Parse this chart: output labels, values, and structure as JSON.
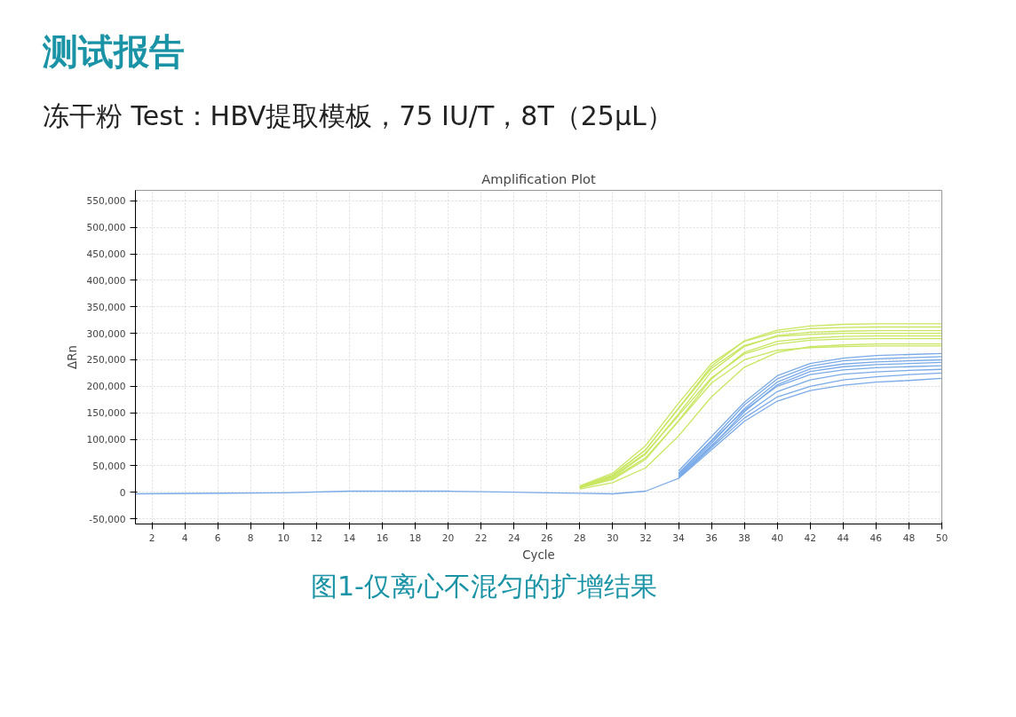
{
  "chart_data": {
    "type": "line",
    "title": "测试报告",
    "subtitle": "冻干粉 Test：HBV提取模板，75 IU/T，8T（25μL）",
    "annotations": [
      "Amplification Plot",
      "图1-仅离心不混匀的扩增结果"
    ],
    "xlabel": "Cycle",
    "ylabel": "ΔRn",
    "x": [
      28,
      30,
      32,
      34,
      36,
      38,
      40,
      42,
      44,
      46,
      48,
      50
    ],
    "xlim": [
      1,
      50
    ],
    "xticks": [
      2,
      4,
      6,
      8,
      10,
      12,
      14,
      16,
      18,
      20,
      22,
      24,
      26,
      28,
      30,
      32,
      34,
      36,
      38,
      40,
      42,
      44,
      46,
      48,
      50
    ],
    "ylim": [
      -60000,
      570000
    ],
    "yticks": [
      {
        "value": -50000,
        "label": "-50,000"
      },
      {
        "value": 0,
        "label": "0"
      },
      {
        "value": 50000,
        "label": "50,000"
      },
      {
        "value": 100000,
        "label": "100,000"
      },
      {
        "value": 150000,
        "label": "150,000"
      },
      {
        "value": 200000,
        "label": "200,000"
      },
      {
        "value": 250000,
        "label": "250,000"
      },
      {
        "value": 300000,
        "label": "300,000"
      },
      {
        "value": 350000,
        "label": "350,000"
      },
      {
        "value": 400000,
        "label": "400,000"
      },
      {
        "value": 450000,
        "label": "450,000"
      },
      {
        "value": 500000,
        "label": "500,000"
      },
      {
        "value": 550000,
        "label": "550,000"
      }
    ],
    "grid": true,
    "marker": "none",
    "line_style": "solid",
    "series": [
      {
        "color": "#c8e660",
        "values": [
          10000,
          32000,
          80000,
          159000,
          238000,
          286000,
          306000,
          314000,
          317000,
          318000,
          318000,
          318000
        ]
      },
      {
        "color": "#c8e660",
        "values": [
          12000,
          36000,
          88000,
          168000,
          243000,
          285000,
          302000,
          309000,
          311000,
          312000,
          312000,
          312000
        ]
      },
      {
        "color": "#c8e660",
        "values": [
          9000,
          28000,
          72000,
          148000,
          228000,
          275000,
          296000,
          302000,
          304000,
          305000,
          305000,
          305000
        ]
      },
      {
        "color": "#c8e660",
        "values": [
          11000,
          33000,
          80000,
          158000,
          234000,
          277000,
          294000,
          298000,
          300000,
          300000,
          300000,
          300000
        ]
      },
      {
        "color": "#c8e660",
        "values": [
          8000,
          24000,
          62000,
          135000,
          214000,
          264000,
          285000,
          291000,
          294000,
          295000,
          295000,
          295000
        ]
      },
      {
        "color": "#c8e660",
        "values": [
          10000,
          30000,
          74000,
          145000,
          216000,
          261000,
          280000,
          287000,
          289000,
          290000,
          290000,
          290000
        ]
      },
      {
        "color": "#c8e660",
        "values": [
          6000,
          18000,
          46000,
          106000,
          180000,
          236000,
          264000,
          275000,
          278000,
          280000,
          280000,
          280000
        ]
      },
      {
        "color": "#c8e660",
        "values": [
          9000,
          26000,
          65000,
          134000,
          206000,
          250000,
          268000,
          273000,
          275000,
          276000,
          276000,
          276000
        ]
      },
      {
        "color": "#7aaae8",
        "x": [
          34,
          36,
          38,
          40,
          42,
          44,
          46,
          48,
          50
        ],
        "values": [
          40000,
          105000,
          170000,
          220000,
          243000,
          253000,
          258000,
          260000,
          262000
        ]
      },
      {
        "color": "#7aaae8",
        "x": [
          34,
          36,
          38,
          40,
          42,
          44,
          46,
          48,
          50
        ],
        "values": [
          36000,
          98000,
          165000,
          214000,
          238000,
          248000,
          252000,
          254000,
          256000
        ]
      },
      {
        "color": "#7aaae8",
        "x": [
          34,
          36,
          38,
          40,
          42,
          44,
          46,
          48,
          50
        ],
        "values": [
          32000,
          92000,
          158000,
          208000,
          233000,
          242000,
          246000,
          248000,
          250000
        ]
      },
      {
        "color": "#7aaae8",
        "x": [
          34,
          36,
          38,
          40,
          42,
          44,
          46,
          48,
          50
        ],
        "values": [
          29000,
          86000,
          152000,
          203000,
          228000,
          237000,
          241000,
          243000,
          245000
        ]
      },
      {
        "color": "#7aaae8",
        "x": [
          34,
          36,
          38,
          40,
          42,
          44,
          46,
          48,
          50
        ],
        "values": [
          34000,
          96000,
          155000,
          200000,
          222000,
          231000,
          235000,
          237000,
          239000
        ]
      },
      {
        "color": "#7aaae8",
        "x": [
          34,
          36,
          38,
          40,
          42,
          44,
          46,
          48,
          50
        ],
        "values": [
          30000,
          88000,
          146000,
          190000,
          212000,
          223000,
          227000,
          230000,
          232000
        ]
      },
      {
        "color": "#7aaae8",
        "x": [
          34,
          36,
          38,
          40,
          42,
          44,
          46,
          48,
          50
        ],
        "values": [
          27000,
          84000,
          140000,
          180000,
          200000,
          212000,
          218000,
          222000,
          225000
        ]
      },
      {
        "color": "#7aaae8",
        "x": [
          1,
          10,
          14,
          20,
          24,
          26,
          28,
          30,
          32,
          34,
          36,
          38,
          40,
          42,
          44,
          46,
          48,
          50
        ],
        "values": [
          -3000,
          -1000,
          2000,
          2000,
          0,
          -1000,
          -2000,
          -3000,
          2000,
          26000,
          80000,
          134000,
          172000,
          192000,
          202000,
          208000,
          211000,
          215000
        ]
      }
    ]
  }
}
